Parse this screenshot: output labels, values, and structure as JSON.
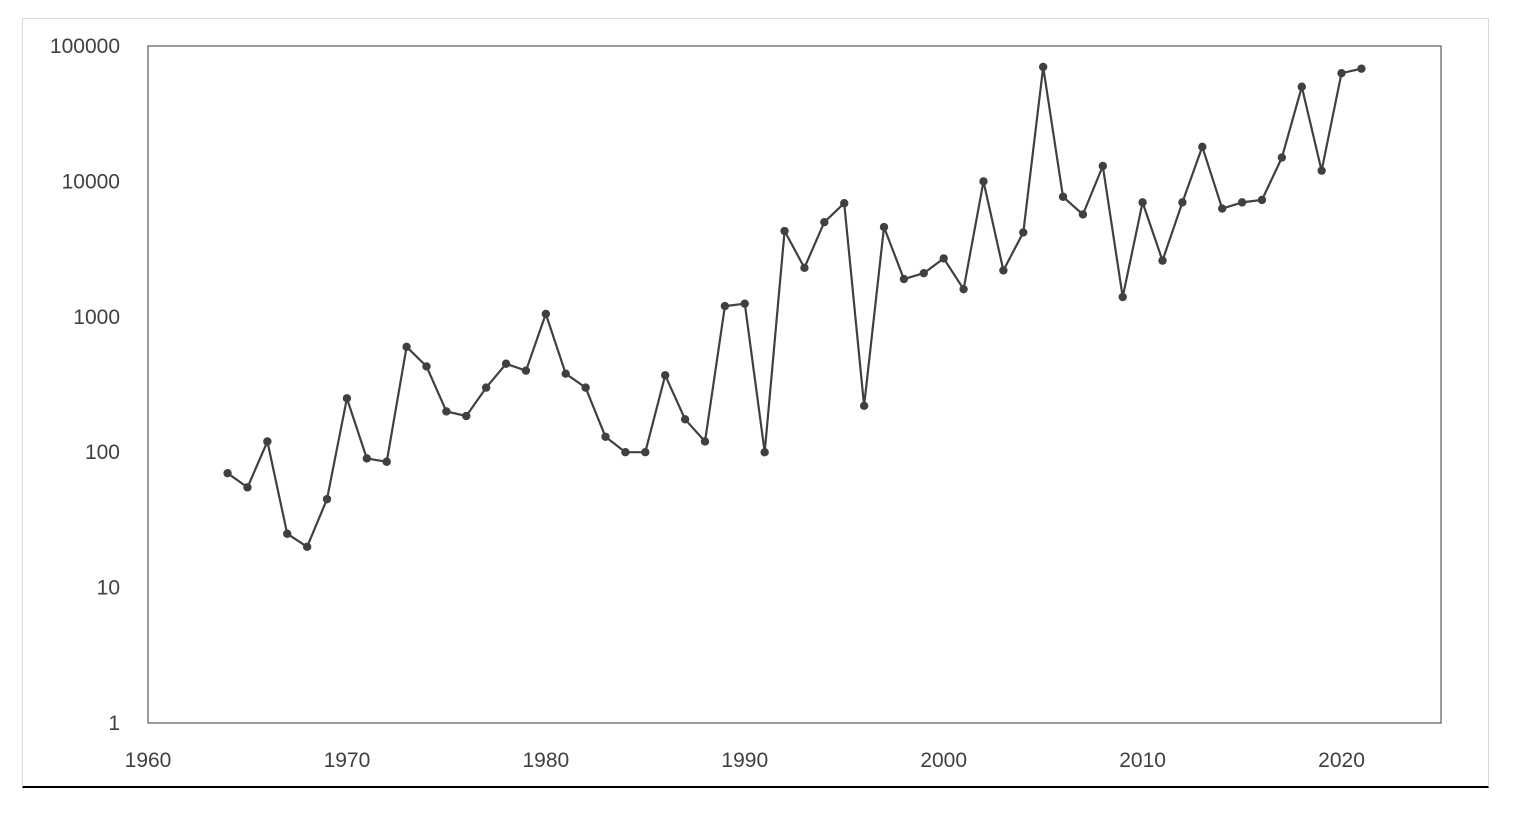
{
  "chart_data": {
    "type": "line",
    "title": "",
    "xlabel": "",
    "ylabel": "",
    "xlim": [
      1960,
      2025
    ],
    "ylim": [
      1,
      100000
    ],
    "yscale": "log",
    "grid": false,
    "legend": "none",
    "x_ticks": [
      1960,
      1970,
      1980,
      1990,
      2000,
      2010,
      2020
    ],
    "y_ticks": [
      1,
      10,
      100,
      1000,
      10000,
      100000
    ],
    "x_tick_labels": [
      "1960",
      "1970",
      "1980",
      "1990",
      "2000",
      "2010",
      "2020"
    ],
    "y_tick_labels": [
      "1",
      "10",
      "100",
      "1000",
      "10000",
      "100000"
    ],
    "line_color": "#404040",
    "series": [
      {
        "x": [
          1964,
          1965,
          1966,
          1967,
          1968,
          1969,
          1970,
          1971,
          1972,
          1973,
          1974,
          1975,
          1976,
          1977,
          1978,
          1979,
          1980,
          1981,
          1982,
          1983,
          1984,
          1985,
          1986,
          1987,
          1988,
          1989,
          1990,
          1991,
          1992,
          1993,
          1994,
          1995,
          1996,
          1997,
          1998,
          1999,
          2000,
          2001,
          2002,
          2003,
          2004,
          2005,
          2006,
          2007,
          2008,
          2009,
          2010,
          2011,
          2012,
          2013,
          2014,
          2015,
          2016,
          2017,
          2018,
          2019,
          2020,
          2021
        ],
        "values": [
          70,
          55,
          120,
          25,
          20,
          45,
          250,
          90,
          85,
          600,
          430,
          200,
          185,
          300,
          450,
          400,
          1050,
          380,
          300,
          130,
          100,
          100,
          370,
          175,
          120,
          1200,
          1250,
          100,
          4300,
          2300,
          5000,
          6900,
          220,
          4600,
          1900,
          2100,
          2700,
          1600,
          10000,
          2200,
          4200,
          70000,
          7700,
          5700,
          13000,
          1400,
          7000,
          2600,
          7000,
          18000,
          6300,
          7000,
          7300,
          15000,
          50000,
          12000,
          63000,
          68000
        ]
      }
    ]
  }
}
